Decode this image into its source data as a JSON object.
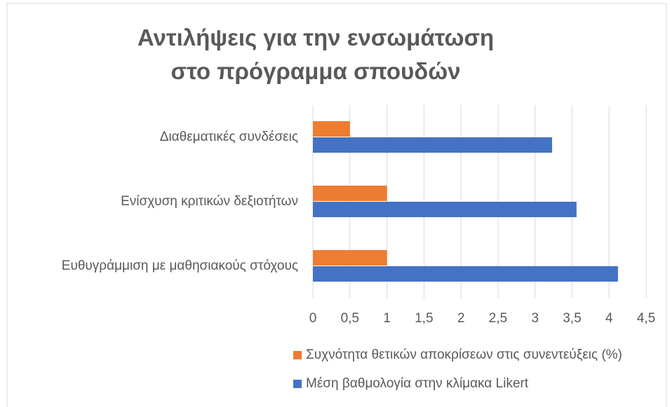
{
  "chart_data": {
    "type": "bar",
    "orientation": "horizontal",
    "title": "Αντιλήψεις για την ενσωμάτωση στο πρόγραμμα σπουδών",
    "categories": [
      "Διαθεματικές συνδέσεις",
      "Ενίσχυση κριτικών δεξιοτήτων",
      "Ευθυγράμμιση με μαθησιακούς στόχους"
    ],
    "series": [
      {
        "name": "Συχνότητα θετικών αποκρίσεων στις συνεντεύξεις (%)",
        "color": "#ed7d31",
        "values": [
          0.5,
          1,
          1
        ]
      },
      {
        "name": "Μέση βαθμολογία στην κλίμακα Likert",
        "color": "#4472c4",
        "values": [
          3.23,
          3.56,
          4.12
        ]
      }
    ],
    "xlim": [
      0,
      4.5
    ],
    "xticks": [
      0,
      {
        "value": 0.5,
        "label": "0,5"
      },
      1,
      {
        "value": 1.5,
        "label": "1,5"
      },
      2,
      {
        "value": 2.5,
        "label": "2,5"
      },
      3,
      {
        "value": 3.5,
        "label": "3,5"
      },
      4,
      {
        "value": 4.5,
        "label": "4,5"
      }
    ],
    "grid": true,
    "legend": "bottom"
  }
}
